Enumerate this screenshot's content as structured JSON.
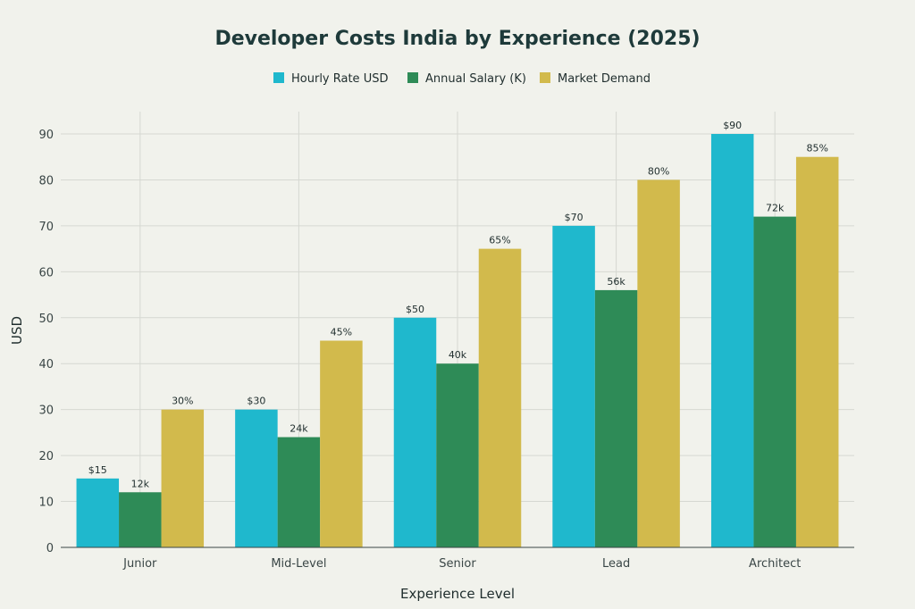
{
  "chart_data": {
    "type": "bar",
    "title": "Developer Costs India by Experience (2025)",
    "xlabel": "Experience Level",
    "ylabel": "USD",
    "categories": [
      "Junior",
      "Mid-Level",
      "Senior",
      "Lead",
      "Architect"
    ],
    "ylim": [
      0,
      95
    ],
    "yticks": [
      0,
      10,
      20,
      30,
      40,
      50,
      60,
      70,
      80,
      90
    ],
    "grid": true,
    "legend_position": "top",
    "series": [
      {
        "name": "Hourly Rate USD",
        "color": "#1fb8cd",
        "values": [
          15,
          30,
          50,
          70,
          90
        ],
        "labels": [
          "$15",
          "$30",
          "$50",
          "$70",
          "$90"
        ]
      },
      {
        "name": "Annual Salary (K)",
        "color": "#2e8b57",
        "values": [
          12,
          24,
          40,
          56,
          72
        ],
        "labels": [
          "12k",
          "24k",
          "40k",
          "56k",
          "72k"
        ]
      },
      {
        "name": "Market Demand",
        "color": "#d2ba4c",
        "values": [
          30,
          45,
          65,
          80,
          85
        ],
        "labels": [
          "30%",
          "45%",
          "65%",
          "80%",
          "85%"
        ]
      }
    ]
  }
}
